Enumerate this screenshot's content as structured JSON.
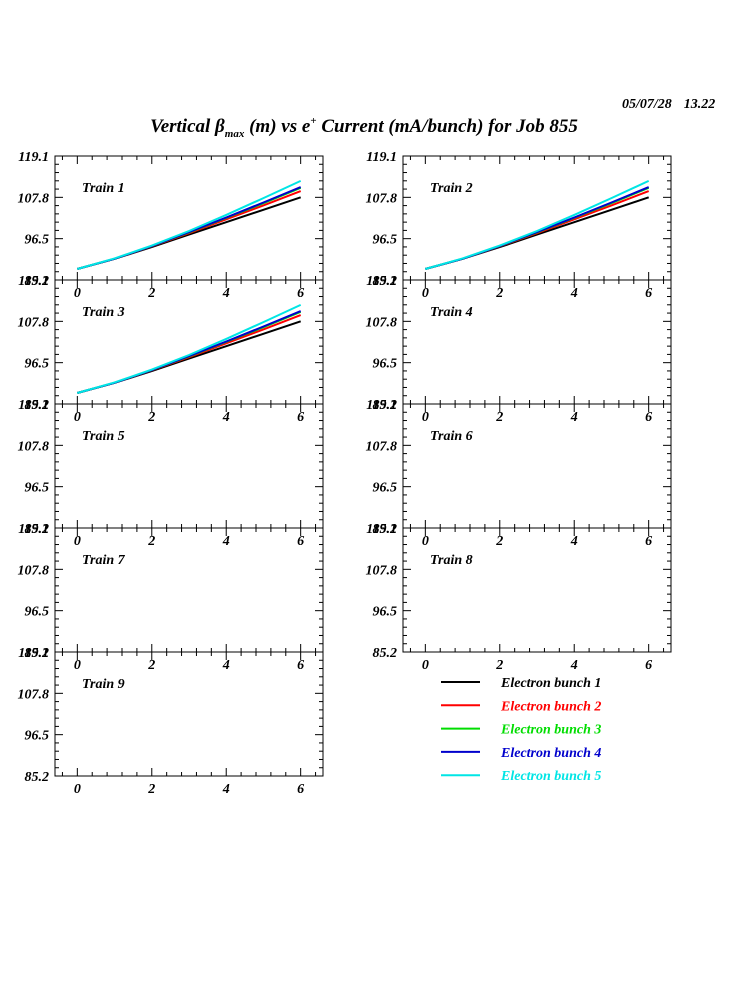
{
  "header": {
    "date": "05/07/28",
    "time": "13.22",
    "title_prefix": "Vertical ",
    "title_beta": "β",
    "title_sub": "max",
    "title_mid": " (m) vs e",
    "title_sup": "+",
    "title_suffix": " Current (mA/bunch) for Job 855"
  },
  "chart_data": {
    "type": "line",
    "title": "Vertical βmax (m) vs e+ Current (mA/bunch) for Job 855",
    "xlim": [
      -0.6,
      6.6
    ],
    "ylim": [
      85.2,
      119.1
    ],
    "xticks": [
      "0",
      "2",
      "4",
      "6"
    ],
    "yticks": [
      "119.1",
      "107.8",
      "96.5",
      "85.2"
    ],
    "grid": false,
    "series_colors": [
      "#000000",
      "#ff0000",
      "#00dd00",
      "#0000cc",
      "#00e5e5"
    ],
    "legend": [
      {
        "name": "Electron bunch 1",
        "color": "#000000"
      },
      {
        "name": "Electron bunch 2",
        "color": "#ff0000"
      },
      {
        "name": "Electron bunch 3",
        "color": "#00dd00"
      },
      {
        "name": "Electron bunch 4",
        "color": "#0000cc"
      },
      {
        "name": "Electron bunch 5",
        "color": "#00e5e5"
      }
    ],
    "x": [
      0,
      1,
      2,
      3,
      4,
      5,
      6
    ],
    "panels": [
      {
        "label": "Train 1",
        "series": [
          {
            "name": "Electron bunch 1",
            "values": [
              88.2,
              91.0,
              94.2,
              97.6,
              101.0,
              104.4,
              107.8
            ]
          },
          {
            "name": "Electron bunch 2",
            "values": [
              88.2,
              91.0,
              94.4,
              98.0,
              101.8,
              105.6,
              109.5
            ]
          },
          {
            "name": "Electron bunch 3",
            "values": [
              88.2,
              91.0,
              94.5,
              98.2,
              102.2,
              106.2,
              110.4
            ]
          },
          {
            "name": "Electron bunch 4",
            "values": [
              88.2,
              91.0,
              94.5,
              98.3,
              102.3,
              106.4,
              110.6
            ]
          },
          {
            "name": "Electron bunch 5",
            "values": [
              88.2,
              91.1,
              94.6,
              98.6,
              103.0,
              107.6,
              112.3
            ]
          }
        ]
      },
      {
        "label": "Train 2",
        "series": [
          {
            "name": "Electron bunch 1",
            "values": [
              88.2,
              91.0,
              94.2,
              97.6,
              101.0,
              104.4,
              107.8
            ]
          },
          {
            "name": "Electron bunch 2",
            "values": [
              88.2,
              91.0,
              94.4,
              98.0,
              101.8,
              105.6,
              109.5
            ]
          },
          {
            "name": "Electron bunch 3",
            "values": [
              88.2,
              91.0,
              94.5,
              98.2,
              102.2,
              106.2,
              110.4
            ]
          },
          {
            "name": "Electron bunch 4",
            "values": [
              88.2,
              91.0,
              94.5,
              98.3,
              102.3,
              106.4,
              110.6
            ]
          },
          {
            "name": "Electron bunch 5",
            "values": [
              88.2,
              91.1,
              94.6,
              98.6,
              103.0,
              107.6,
              112.3
            ]
          }
        ]
      },
      {
        "label": "Train 3",
        "series": [
          {
            "name": "Electron bunch 1",
            "values": [
              88.2,
              91.0,
              94.2,
              97.6,
              101.0,
              104.4,
              107.8
            ]
          },
          {
            "name": "Electron bunch 2",
            "values": [
              88.2,
              91.0,
              94.4,
              98.0,
              101.8,
              105.6,
              109.5
            ]
          },
          {
            "name": "Electron bunch 3",
            "values": [
              88.2,
              91.0,
              94.5,
              98.2,
              102.2,
              106.2,
              110.4
            ]
          },
          {
            "name": "Electron bunch 4",
            "values": [
              88.2,
              91.0,
              94.5,
              98.3,
              102.3,
              106.4,
              110.6
            ]
          },
          {
            "name": "Electron bunch 5",
            "values": [
              88.2,
              91.1,
              94.6,
              98.6,
              103.0,
              107.6,
              112.3
            ]
          }
        ]
      },
      {
        "label": "Train 4",
        "series": []
      },
      {
        "label": "Train 5",
        "series": []
      },
      {
        "label": "Train 6",
        "series": []
      },
      {
        "label": "Train 7",
        "series": []
      },
      {
        "label": "Train 8",
        "series": []
      },
      {
        "label": "Train 9",
        "series": []
      }
    ]
  }
}
